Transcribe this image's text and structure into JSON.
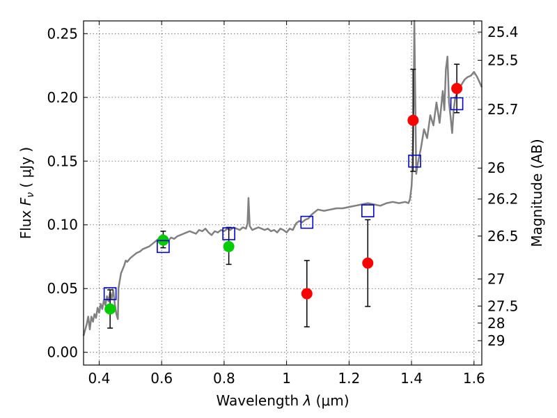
{
  "chart_data": {
    "type": "scatter",
    "xlabel": "Wavelength  λ (μm)",
    "ylabel": "Flux  F_ν  ( μJy )",
    "y2label": "Magnitude (AB)",
    "xlim": [
      0.35,
      1.625
    ],
    "ylim": [
      -0.01,
      0.26
    ],
    "x_ticks": [
      0.4,
      0.6,
      0.8,
      1.0,
      1.2,
      1.4,
      1.6
    ],
    "x_tick_labels": [
      "0.4",
      "0.6",
      "0.8",
      "1",
      "1.2",
      "1.4",
      "1.6"
    ],
    "y_ticks": [
      0.0,
      0.05,
      0.1,
      0.15,
      0.2,
      0.25
    ],
    "y_tick_labels": [
      "0.00",
      "0.05",
      "0.10",
      "0.15",
      "0.20",
      "0.25"
    ],
    "mag_ticks": [
      "25.4",
      "25.5",
      "25.7",
      "26",
      "26.2",
      "26.5",
      "27",
      "27.5",
      "28",
      "29"
    ],
    "grid": true,
    "colors": {
      "model": "#808080",
      "optical": "#00cc00",
      "infrared": "#ff0000",
      "model_flux": "#0000cc",
      "errorbar": "#000000"
    },
    "model_spectrum": [
      [
        0.35,
        0.013
      ],
      [
        0.36,
        0.022
      ],
      [
        0.365,
        0.028
      ],
      [
        0.37,
        0.018
      ],
      [
        0.375,
        0.028
      ],
      [
        0.38,
        0.024
      ],
      [
        0.385,
        0.03
      ],
      [
        0.39,
        0.027
      ],
      [
        0.395,
        0.035
      ],
      [
        0.4,
        0.031
      ],
      [
        0.405,
        0.038
      ],
      [
        0.41,
        0.034
      ],
      [
        0.415,
        0.041
      ],
      [
        0.42,
        0.037
      ],
      [
        0.425,
        0.044
      ],
      [
        0.43,
        0.04
      ],
      [
        0.435,
        0.047
      ],
      [
        0.44,
        0.042
      ],
      [
        0.445,
        0.049
      ],
      [
        0.45,
        0.038
      ],
      [
        0.455,
        0.03
      ],
      [
        0.46,
        0.026
      ],
      [
        0.462,
        0.05
      ],
      [
        0.465,
        0.055
      ],
      [
        0.47,
        0.062
      ],
      [
        0.48,
        0.068
      ],
      [
        0.485,
        0.072
      ],
      [
        0.49,
        0.071
      ],
      [
        0.5,
        0.074
      ],
      [
        0.51,
        0.076
      ],
      [
        0.52,
        0.078
      ],
      [
        0.53,
        0.079
      ],
      [
        0.54,
        0.081
      ],
      [
        0.55,
        0.082
      ],
      [
        0.56,
        0.083
      ],
      [
        0.57,
        0.085
      ],
      [
        0.58,
        0.087
      ],
      [
        0.59,
        0.089
      ],
      [
        0.6,
        0.088
      ],
      [
        0.61,
        0.086
      ],
      [
        0.62,
        0.087
      ],
      [
        0.63,
        0.09
      ],
      [
        0.64,
        0.089
      ],
      [
        0.65,
        0.091
      ],
      [
        0.66,
        0.092
      ],
      [
        0.67,
        0.093
      ],
      [
        0.68,
        0.094
      ],
      [
        0.69,
        0.095
      ],
      [
        0.7,
        0.094
      ],
      [
        0.71,
        0.093
      ],
      [
        0.72,
        0.096
      ],
      [
        0.73,
        0.095
      ],
      [
        0.74,
        0.097
      ],
      [
        0.75,
        0.094
      ],
      [
        0.76,
        0.092
      ],
      [
        0.77,
        0.095
      ],
      [
        0.78,
        0.094
      ],
      [
        0.79,
        0.096
      ],
      [
        0.8,
        0.095
      ],
      [
        0.81,
        0.097
      ],
      [
        0.82,
        0.096
      ],
      [
        0.83,
        0.098
      ],
      [
        0.84,
        0.097
      ],
      [
        0.85,
        0.096
      ],
      [
        0.86,
        0.098
      ],
      [
        0.87,
        0.097
      ],
      [
        0.875,
        0.101
      ],
      [
        0.878,
        0.121
      ],
      [
        0.882,
        0.099
      ],
      [
        0.89,
        0.096
      ],
      [
        0.9,
        0.097
      ],
      [
        0.91,
        0.098
      ],
      [
        0.92,
        0.097
      ],
      [
        0.93,
        0.096
      ],
      [
        0.94,
        0.097
      ],
      [
        0.95,
        0.095
      ],
      [
        0.96,
        0.096
      ],
      [
        0.97,
        0.094
      ],
      [
        0.98,
        0.097
      ],
      [
        0.99,
        0.096
      ],
      [
        1.0,
        0.094
      ],
      [
        1.01,
        0.097
      ],
      [
        1.02,
        0.096
      ],
      [
        1.03,
        0.101
      ],
      [
        1.04,
        0.103
      ],
      [
        1.05,
        0.102
      ],
      [
        1.06,
        0.104
      ],
      [
        1.07,
        0.105
      ],
      [
        1.08,
        0.108
      ],
      [
        1.09,
        0.11
      ],
      [
        1.1,
        0.112
      ],
      [
        1.12,
        0.111
      ],
      [
        1.14,
        0.112
      ],
      [
        1.16,
        0.113
      ],
      [
        1.18,
        0.113
      ],
      [
        1.2,
        0.114
      ],
      [
        1.22,
        0.115
      ],
      [
        1.24,
        0.116
      ],
      [
        1.26,
        0.117
      ],
      [
        1.28,
        0.116
      ],
      [
        1.3,
        0.115
      ],
      [
        1.32,
        0.117
      ],
      [
        1.34,
        0.118
      ],
      [
        1.36,
        0.117
      ],
      [
        1.38,
        0.118
      ],
      [
        1.39,
        0.117
      ],
      [
        1.395,
        0.12
      ],
      [
        1.4,
        0.13
      ],
      [
        1.403,
        0.145
      ],
      [
        1.405,
        0.17
      ],
      [
        1.407,
        0.2
      ],
      [
        1.409,
        0.26
      ],
      [
        1.412,
        0.2
      ],
      [
        1.415,
        0.14
      ],
      [
        1.42,
        0.148
      ],
      [
        1.43,
        0.16
      ],
      [
        1.44,
        0.175
      ],
      [
        1.45,
        0.168
      ],
      [
        1.46,
        0.186
      ],
      [
        1.47,
        0.178
      ],
      [
        1.48,
        0.196
      ],
      [
        1.49,
        0.18
      ],
      [
        1.5,
        0.205
      ],
      [
        1.505,
        0.19
      ],
      [
        1.51,
        0.222
      ],
      [
        1.515,
        0.232
      ],
      [
        1.52,
        0.196
      ],
      [
        1.525,
        0.185
      ],
      [
        1.53,
        0.172
      ],
      [
        1.535,
        0.19
      ],
      [
        1.54,
        0.2
      ],
      [
        1.55,
        0.205
      ],
      [
        1.56,
        0.21
      ],
      [
        1.57,
        0.214
      ],
      [
        1.58,
        0.216
      ],
      [
        1.59,
        0.217
      ],
      [
        1.6,
        0.22
      ],
      [
        1.61,
        0.216
      ],
      [
        1.625,
        0.208
      ]
    ],
    "series": [
      {
        "marker": "circle",
        "color": "#00cc00",
        "points": [
          {
            "x": 0.435,
            "y": 0.034,
            "err_low": 0.015,
            "err_high": 0.015
          },
          {
            "x": 0.605,
            "y": 0.088,
            "err_low": 0.006,
            "err_high": 0.007
          },
          {
            "x": 0.815,
            "y": 0.083,
            "err_low": 0.014,
            "err_high": 0.015
          }
        ]
      },
      {
        "marker": "circle",
        "color": "#ff0000",
        "points": [
          {
            "x": 1.065,
            "y": 0.046,
            "err_low": 0.026,
            "err_high": 0.026
          },
          {
            "x": 1.26,
            "y": 0.07,
            "err_low": 0.034,
            "err_high": 0.034
          },
          {
            "x": 1.405,
            "y": 0.182,
            "err_low": 0.04,
            "err_high": 0.04
          },
          {
            "x": 1.545,
            "y": 0.207,
            "err_low": 0.019,
            "err_high": 0.019
          }
        ]
      },
      {
        "marker": "square",
        "color": "#0000cc",
        "points": [
          {
            "x": 0.435,
            "y": 0.046
          },
          {
            "x": 0.605,
            "y": 0.083
          },
          {
            "x": 0.815,
            "y": 0.093
          },
          {
            "x": 1.065,
            "y": 0.102
          },
          {
            "x": 1.26,
            "y": 0.111
          },
          {
            "x": 1.41,
            "y": 0.15
          },
          {
            "x": 1.545,
            "y": 0.195
          }
        ]
      }
    ]
  }
}
